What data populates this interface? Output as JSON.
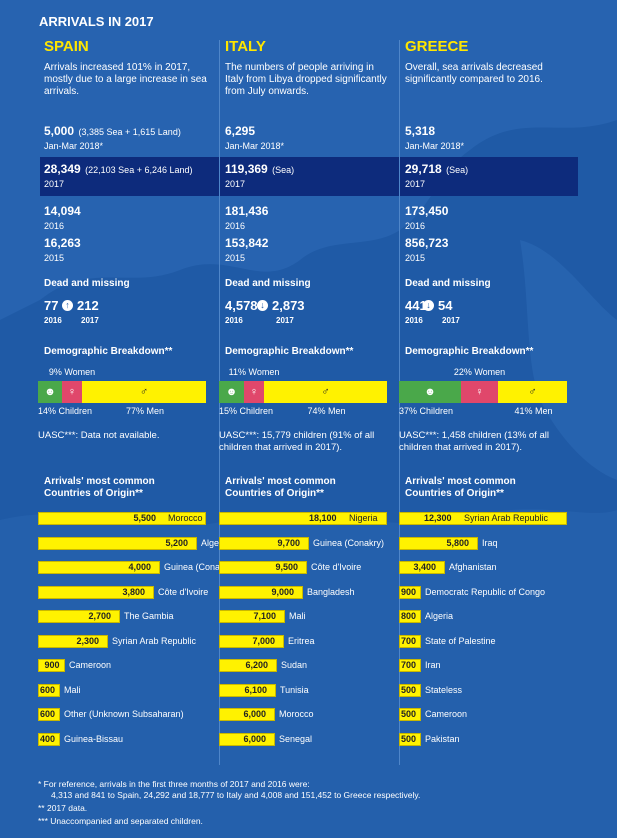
{
  "title": "ARRIVALS IN 2017",
  "colors": {
    "background": "#1f5aa6",
    "highlight_band": "#0d2b7c",
    "accent_yellow": "#ffe600",
    "bar_yellow": "#fff200",
    "children_green": "#4aa84a",
    "women_pink": "#e0476b"
  },
  "labels": {
    "dead_missing": "Dead and missing",
    "demographic": "Demographic Breakdown**",
    "origins_line1": "Arrivals' most common",
    "origins_line2": "Countries of Origin**"
  },
  "columns": [
    {
      "name": "SPAIN",
      "summary": "Arrivals increased 101% in 2017, mostly due to a large increase in sea arrivals.",
      "q1_value": "5,000",
      "q1_detail": "(3,385 Sea + 1,615 Land)",
      "q1_label": "Jan-Mar 2018*",
      "y2017_value": "28,349",
      "y2017_detail": "(22,103 Sea + 6,246 Land)",
      "y2017_label": "2017",
      "y2016_value": "14,094",
      "y2016_label": "2016",
      "y2015_value": "16,263",
      "y2015_label": "2015",
      "dead_2016": "77",
      "dead_2017": "212",
      "dead_trend": "up",
      "dead_icon": "arrow-up-circle-icon",
      "women_label": "9% Women",
      "children_label": "14% Children",
      "men_label": "77% Men",
      "demo": {
        "children": 14,
        "women": 9,
        "men": 77
      },
      "uasc": "UASC***: Data not available.",
      "origins": [
        {
          "country": "Morocco",
          "value": 5500,
          "value_label": "5,500"
        },
        {
          "country": "Algeria",
          "value": 5200,
          "value_label": "5,200"
        },
        {
          "country": "Guinea (Conakry)",
          "value": 4000,
          "value_label": "4,000"
        },
        {
          "country": "Côte d'Ivoire",
          "value": 3800,
          "value_label": "3,800"
        },
        {
          "country": "The Gambia",
          "value": 2700,
          "value_label": "2,700"
        },
        {
          "country": "Syrian Arab Republic",
          "value": 2300,
          "value_label": "2,300"
        },
        {
          "country": "Cameroon",
          "value": 900,
          "value_label": "900"
        },
        {
          "country": "Mali",
          "value": 600,
          "value_label": "600"
        },
        {
          "country": "Other (Unknown Subsaharan)",
          "value": 600,
          "value_label": "600"
        },
        {
          "country": "Guinea-Bissau",
          "value": 400,
          "value_label": "400"
        }
      ]
    },
    {
      "name": "ITALY",
      "summary": "The numbers of people arriving in Italy from Libya dropped significantly from July onwards.",
      "q1_value": "6,295",
      "q1_detail": "",
      "q1_label": "Jan-Mar 2018*",
      "y2017_value": "119,369",
      "y2017_detail": "(Sea)",
      "y2017_label": "2017",
      "y2016_value": "181,436",
      "y2016_label": "2016",
      "y2015_value": "153,842",
      "y2015_label": "2015",
      "dead_2016": "4,578",
      "dead_2017": "2,873",
      "dead_trend": "down",
      "dead_icon": "arrow-down-circle-icon",
      "women_label": "11% Women",
      "children_label": "15% Children",
      "men_label": "74% Men",
      "demo": {
        "children": 15,
        "women": 11,
        "men": 74
      },
      "uasc": "UASC***: 15,779 children (91% of all children that arrived in 2017).",
      "origins": [
        {
          "country": "Nigeria",
          "value": 18100,
          "value_label": "18,100"
        },
        {
          "country": "Guinea (Conakry)",
          "value": 9700,
          "value_label": "9,700"
        },
        {
          "country": "Côte d'Ivoire",
          "value": 9500,
          "value_label": "9,500"
        },
        {
          "country": "Bangladesh",
          "value": 9000,
          "value_label": "9,000"
        },
        {
          "country": "Mali",
          "value": 7100,
          "value_label": "7,100"
        },
        {
          "country": "Eritrea",
          "value": 7000,
          "value_label": "7,000"
        },
        {
          "country": "Sudan",
          "value": 6200,
          "value_label": "6,200"
        },
        {
          "country": "Tunisia",
          "value": 6100,
          "value_label": "6,100"
        },
        {
          "country": "Morocco",
          "value": 6000,
          "value_label": "6,000"
        },
        {
          "country": "Senegal",
          "value": 6000,
          "value_label": "6,000"
        }
      ]
    },
    {
      "name": "GREECE",
      "summary": "Overall, sea arrivals decreased significantly compared to 2016.",
      "q1_value": "5,318",
      "q1_detail": "",
      "q1_label": "Jan-Mar 2018*",
      "y2017_value": "29,718",
      "y2017_detail": "(Sea)",
      "y2017_label": "2017",
      "y2016_value": "173,450",
      "y2016_label": "2016",
      "y2015_value": "856,723",
      "y2015_label": "2015",
      "dead_2016": "441",
      "dead_2017": "54",
      "dead_trend": "down",
      "dead_icon": "arrow-down-circle-icon",
      "women_label": "22% Women",
      "children_label": "37% Children",
      "men_label": "41% Men",
      "demo": {
        "children": 37,
        "women": 22,
        "men": 41
      },
      "uasc": "UASC***: 1,458 children (13% of all children that arrived in 2017).",
      "origins": [
        {
          "country": "Syrian Arab Republic",
          "value": 12300,
          "value_label": "12,300"
        },
        {
          "country": "Iraq",
          "value": 5800,
          "value_label": "5,800"
        },
        {
          "country": "Afghanistan",
          "value": 3400,
          "value_label": "3,400"
        },
        {
          "country": "Democratc Republic of Congo",
          "value": 900,
          "value_label": "900"
        },
        {
          "country": "Algeria",
          "value": 800,
          "value_label": "800"
        },
        {
          "country": "State of Palestine",
          "value": 700,
          "value_label": "700"
        },
        {
          "country": "Iran",
          "value": 700,
          "value_label": "700"
        },
        {
          "country": "Stateless",
          "value": 500,
          "value_label": "500"
        },
        {
          "country": "Cameroon",
          "value": 500,
          "value_label": "500"
        },
        {
          "country": "Pakistan",
          "value": 500,
          "value_label": "500"
        }
      ]
    }
  ],
  "footnotes": {
    "f1_line1": "*   For reference, arrivals in the first three months of 2017 and 2016 were:",
    "f1_line2": "4,313 and 841 to Spain, 24,292 and 18,777 to Italy and 4,008 and 151,452 to Greece respectively.",
    "f2": "**  2017 data.",
    "f3": "*** Unaccompanied and separated children."
  },
  "chart_data": [
    {
      "type": "bar",
      "title": "Arrivals' most common Countries of Origin**",
      "xlabel": "",
      "ylabel": "",
      "group": "SPAIN",
      "categories": [
        "Morocco",
        "Algeria",
        "Guinea (Conakry)",
        "Côte d'Ivoire",
        "The Gambia",
        "Syrian Arab Republic",
        "Cameroon",
        "Mali",
        "Other (Unknown Subsaharan)",
        "Guinea-Bissau"
      ],
      "values": [
        5500,
        5200,
        4000,
        3800,
        2700,
        2300,
        900,
        600,
        600,
        400
      ]
    },
    {
      "type": "bar",
      "title": "Arrivals' most common Countries of Origin**",
      "xlabel": "",
      "ylabel": "",
      "group": "ITALY",
      "categories": [
        "Nigeria",
        "Guinea (Conakry)",
        "Côte d'Ivoire",
        "Bangladesh",
        "Mali",
        "Eritrea",
        "Sudan",
        "Tunisia",
        "Morocco",
        "Senegal"
      ],
      "values": [
        18100,
        9700,
        9500,
        9000,
        7100,
        7000,
        6200,
        6100,
        6000,
        6000
      ]
    },
    {
      "type": "bar",
      "title": "Arrivals' most common Countries of Origin**",
      "xlabel": "",
      "ylabel": "",
      "group": "GREECE",
      "categories": [
        "Syrian Arab Republic",
        "Iraq",
        "Afghanistan",
        "Democratc Republic of Congo",
        "Algeria",
        "State of Palestine",
        "Iran",
        "Stateless",
        "Cameroon",
        "Pakistan"
      ],
      "values": [
        12300,
        5800,
        3400,
        900,
        800,
        700,
        700,
        500,
        500,
        500
      ]
    }
  ]
}
